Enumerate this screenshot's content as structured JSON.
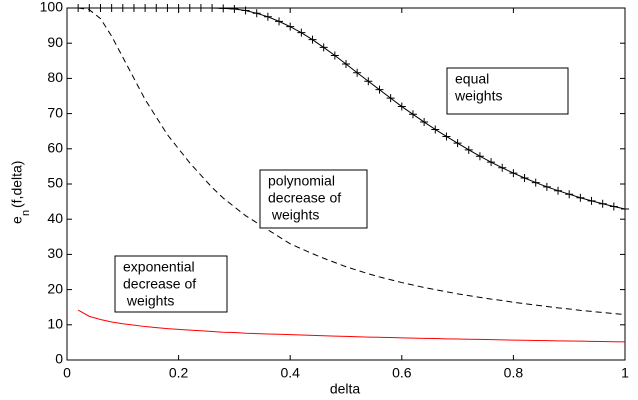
{
  "chart_data": {
    "type": "line",
    "xlabel": "delta",
    "ylabel": {
      "base": "e",
      "subscript": "n",
      "rest": "(f,delta)"
    },
    "xlim": [
      0,
      1
    ],
    "ylim": [
      0,
      100
    ],
    "xticks": [
      0,
      0.2,
      0.4,
      0.6,
      0.8,
      1
    ],
    "yticks": [
      0,
      10,
      20,
      30,
      40,
      50,
      60,
      70,
      80,
      90,
      100
    ],
    "grid": false,
    "x": [
      0.02,
      0.04,
      0.06,
      0.08,
      0.1,
      0.12,
      0.14,
      0.16,
      0.18,
      0.2,
      0.22,
      0.24,
      0.26,
      0.28,
      0.3,
      0.32,
      0.34,
      0.36,
      0.38,
      0.4,
      0.42,
      0.44,
      0.46,
      0.48,
      0.5,
      0.52,
      0.54,
      0.56,
      0.58,
      0.6,
      0.62,
      0.64,
      0.66,
      0.68,
      0.7,
      0.72,
      0.74,
      0.76,
      0.78,
      0.8,
      0.82,
      0.84,
      0.86,
      0.88,
      0.9,
      0.92,
      0.94,
      0.96,
      0.98,
      1
    ],
    "series": [
      {
        "color": "#000000",
        "dash": "solid",
        "marker": "+",
        "values": [
          100,
          100,
          100,
          100,
          100,
          100,
          100,
          100,
          100,
          100,
          100,
          100,
          100,
          99.9,
          99.7,
          99.3,
          98.5,
          97.5,
          96.2,
          94.7,
          93,
          91,
          88.8,
          86.5,
          84.1,
          81.6,
          79.2,
          76.8,
          74.4,
          72,
          69.8,
          67.6,
          65.5,
          63.5,
          61.6,
          59.7,
          57.9,
          56.2,
          54.6,
          53.1,
          51.7,
          50.4,
          49.2,
          48.1,
          47.1,
          46.1,
          45.2,
          44.4,
          43.6,
          42.9
        ]
      },
      {
        "color": "#000000",
        "dash": "dashed",
        "marker": null,
        "values": [
          100,
          99.5,
          97,
          92,
          86,
          80,
          74,
          69,
          64,
          60,
          56,
          52.5,
          49,
          46,
          43.5,
          41,
          39,
          37,
          35,
          33,
          31.6,
          30.2,
          28.9,
          27.7,
          26.5,
          25.5,
          24.5,
          23.6,
          22.8,
          22,
          21.3,
          20.6,
          20,
          19.4,
          18.8,
          18.3,
          17.8,
          17.3,
          16.9,
          16.4,
          16,
          15.6,
          15.2,
          14.8,
          14.5,
          14.1,
          13.8,
          13.5,
          13.2,
          12.9
        ]
      },
      {
        "color": "#ff0000",
        "dash": "solid",
        "marker": null,
        "values": [
          14.2,
          12.4,
          11.5,
          10.8,
          10.3,
          9.9,
          9.5,
          9.2,
          8.9,
          8.7,
          8.5,
          8.3,
          8.1,
          7.9,
          7.8,
          7.6,
          7.5,
          7.4,
          7.3,
          7.2,
          7.1,
          7,
          6.9,
          6.8,
          6.7,
          6.6,
          6.5,
          6.45,
          6.4,
          6.3,
          6.2,
          6.15,
          6.1,
          6,
          5.95,
          5.9,
          5.85,
          5.8,
          5.7,
          5.65,
          5.6,
          5.55,
          5.5,
          5.45,
          5.4,
          5.35,
          5.3,
          5.25,
          5.2,
          5.15
        ]
      }
    ],
    "annotations": [
      {
        "lines": [
          "equal",
          "weights"
        ]
      },
      {
        "lines": [
          "polynomial",
          "decrease of",
          " weights"
        ]
      },
      {
        "lines": [
          "exponential",
          "decrease of",
          " weights"
        ]
      }
    ]
  }
}
